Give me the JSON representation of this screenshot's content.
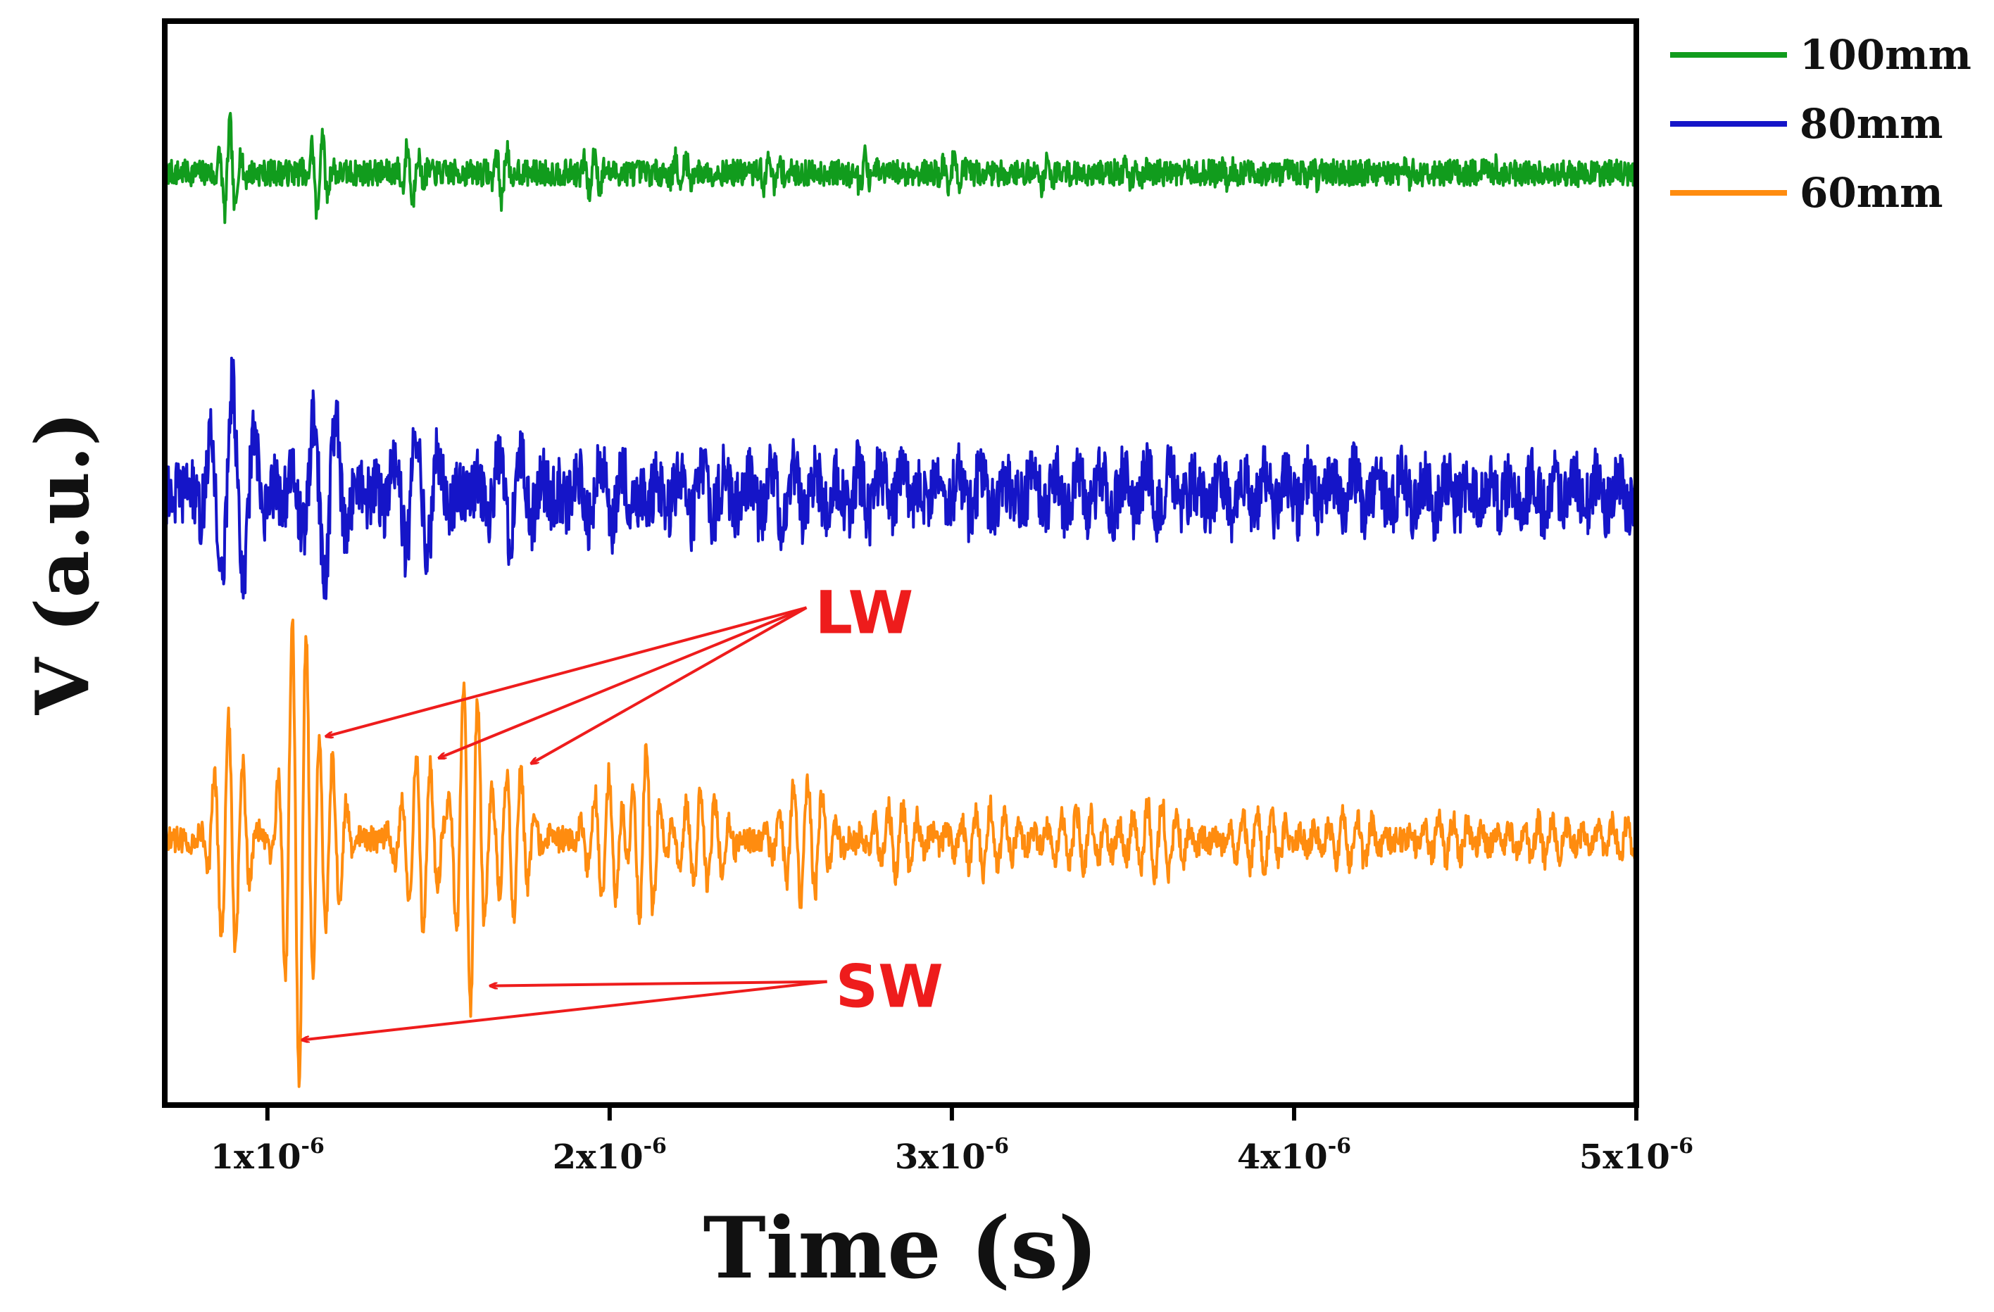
{
  "chart_data": {
    "type": "line",
    "title": "",
    "xlabel": "Time (s)",
    "ylabel": "V (a.u.)",
    "xlim": [
      7e-07,
      5e-06
    ],
    "x_ticks": [
      {
        "value": 1e-06,
        "mantissa": "1x10",
        "exponent": "-6"
      },
      {
        "value": 2e-06,
        "mantissa": "2x10",
        "exponent": "-6"
      },
      {
        "value": 3e-06,
        "mantissa": "3x10",
        "exponent": "-6"
      },
      {
        "value": 4e-06,
        "mantissa": "4x10",
        "exponent": "-6"
      },
      {
        "value": 5e-06,
        "mantissa": "5x10",
        "exponent": "-6"
      }
    ],
    "y_ticks_shown": false,
    "legend_position": "outside-top-right",
    "series": [
      {
        "name": "100mm",
        "color": "#119c1d",
        "baseline": 0.86,
        "amp_unit": 0.05,
        "noise": 0.012,
        "osc_period": 3.2e-08,
        "bursts": [
          {
            "t": 8.9e-07,
            "a": 0.9,
            "w": 2.2e-08
          },
          {
            "t": 1.15e-06,
            "a": 0.8,
            "w": 2.2e-08
          },
          {
            "t": 1.42e-06,
            "a": 0.55,
            "w": 2.2e-08
          },
          {
            "t": 1.69e-06,
            "a": 0.5,
            "w": 2.2e-08
          },
          {
            "t": 1.95e-06,
            "a": 0.4,
            "w": 2.2e-08
          },
          {
            "t": 2.21e-06,
            "a": 0.35,
            "w": 2.2e-08
          },
          {
            "t": 2.47e-06,
            "a": 0.35,
            "w": 2.2e-08
          },
          {
            "t": 2.74e-06,
            "a": 0.3,
            "w": 2.2e-08
          },
          {
            "t": 3e-06,
            "a": 0.25,
            "w": 2.2e-08
          },
          {
            "t": 3.27e-06,
            "a": 0.22,
            "w": 2.2e-08
          },
          {
            "t": 3.53e-06,
            "a": 0.18,
            "w": 2.2e-08
          },
          {
            "t": 3.8e-06,
            "a": 0.15,
            "w": 2.2e-08
          },
          {
            "t": 4.06e-06,
            "a": 0.15,
            "w": 2.2e-08
          },
          {
            "t": 4.33e-06,
            "a": 0.12,
            "w": 2.2e-08
          },
          {
            "t": 4.6e-06,
            "a": 0.12,
            "w": 2.2e-08
          },
          {
            "t": 4.86e-06,
            "a": 0.1,
            "w": 2.2e-08
          }
        ]
      },
      {
        "name": "80mm",
        "color": "#1515c8",
        "baseline": 0.565,
        "amp_unit": 0.05,
        "noise": 0.03,
        "osc_period": 6.5e-08,
        "bursts": [
          {
            "t": 9e-07,
            "a": 2.0,
            "w": 5.5e-08
          },
          {
            "t": 1.17e-06,
            "a": 1.6,
            "w": 5.5e-08
          },
          {
            "t": 1.44e-06,
            "a": 1.2,
            "w": 6e-08
          },
          {
            "t": 1.71e-06,
            "a": 0.8,
            "w": 6.5e-08
          },
          {
            "t": 1.98e-06,
            "a": 0.6,
            "w": 7e-08
          },
          {
            "t": 2.24e-06,
            "a": 0.5,
            "w": 8e-08
          },
          {
            "t": 2.51e-06,
            "a": 0.5,
            "w": 8.5e-08
          },
          {
            "t": 2.78e-06,
            "a": 0.45,
            "w": 9e-08
          },
          {
            "t": 3.05e-06,
            "a": 0.4,
            "w": 9.5e-08
          },
          {
            "t": 3.32e-06,
            "a": 0.4,
            "w": 1e-07
          },
          {
            "t": 3.58e-06,
            "a": 0.38,
            "w": 1e-07
          },
          {
            "t": 3.85e-06,
            "a": 0.35,
            "w": 1.05e-07
          },
          {
            "t": 4.12e-06,
            "a": 0.35,
            "w": 1.05e-07
          },
          {
            "t": 4.38e-06,
            "a": 0.3,
            "w": 1.1e-07
          },
          {
            "t": 4.65e-06,
            "a": 0.3,
            "w": 1.1e-07
          },
          {
            "t": 4.92e-06,
            "a": 0.25,
            "w": 1.1e-07
          }
        ]
      },
      {
        "name": "60mm",
        "color": "#ff8c0f",
        "baseline": 0.245,
        "amp_unit": 0.05,
        "noise": 0.012,
        "osc_period": 4.2e-08,
        "bursts": [
          {
            "t": 8.9e-07,
            "a": 2.2,
            "w": 4e-08
          },
          {
            "t": 1.09e-06,
            "a": 4.5,
            "w": 3.5e-08
          },
          {
            "t": 1.18e-06,
            "a": 1.5,
            "w": 4e-08
          },
          {
            "t": 1.45e-06,
            "a": 1.6,
            "w": 4.5e-08
          },
          {
            "t": 1.59e-06,
            "a": 3.2,
            "w": 3.5e-08
          },
          {
            "t": 1.72e-06,
            "a": 1.4,
            "w": 4e-08
          },
          {
            "t": 2e-06,
            "a": 1.2,
            "w": 5e-08
          },
          {
            "t": 2.1e-06,
            "a": 1.8,
            "w": 3.5e-08
          },
          {
            "t": 2.27e-06,
            "a": 0.9,
            "w": 5.5e-08
          },
          {
            "t": 2.57e-06,
            "a": 1.1,
            "w": 6e-08
          },
          {
            "t": 2.84e-06,
            "a": 0.6,
            "w": 6e-08
          },
          {
            "t": 3.1e-06,
            "a": 0.6,
            "w": 6.5e-08
          },
          {
            "t": 3.37e-06,
            "a": 0.5,
            "w": 6.5e-08
          },
          {
            "t": 3.6e-06,
            "a": 0.7,
            "w": 6.5e-08
          },
          {
            "t": 3.9e-06,
            "a": 0.5,
            "w": 7e-08
          },
          {
            "t": 4.17e-06,
            "a": 0.45,
            "w": 7e-08
          },
          {
            "t": 4.45e-06,
            "a": 0.35,
            "w": 7e-08
          },
          {
            "t": 4.72e-06,
            "a": 0.35,
            "w": 7e-08
          },
          {
            "t": 4.95e-06,
            "a": 0.3,
            "w": 7e-08
          }
        ]
      }
    ],
    "annotations": [
      {
        "label": "LW",
        "color": "#ee1c1c",
        "label_at": {
          "t": 2.6e-06,
          "v": 0.455
        },
        "targets": [
          {
            "t": 1.17e-06,
            "v": 0.34
          },
          {
            "t": 1.5e-06,
            "v": 0.32
          },
          {
            "t": 1.77e-06,
            "v": 0.315
          }
        ]
      },
      {
        "label": "SW",
        "color": "#ee1c1c",
        "label_at": {
          "t": 2.66e-06,
          "v": 0.11
        },
        "targets": [
          {
            "t": 1.1e-06,
            "v": 0.06
          },
          {
            "t": 1.65e-06,
            "v": 0.11
          }
        ]
      }
    ]
  }
}
